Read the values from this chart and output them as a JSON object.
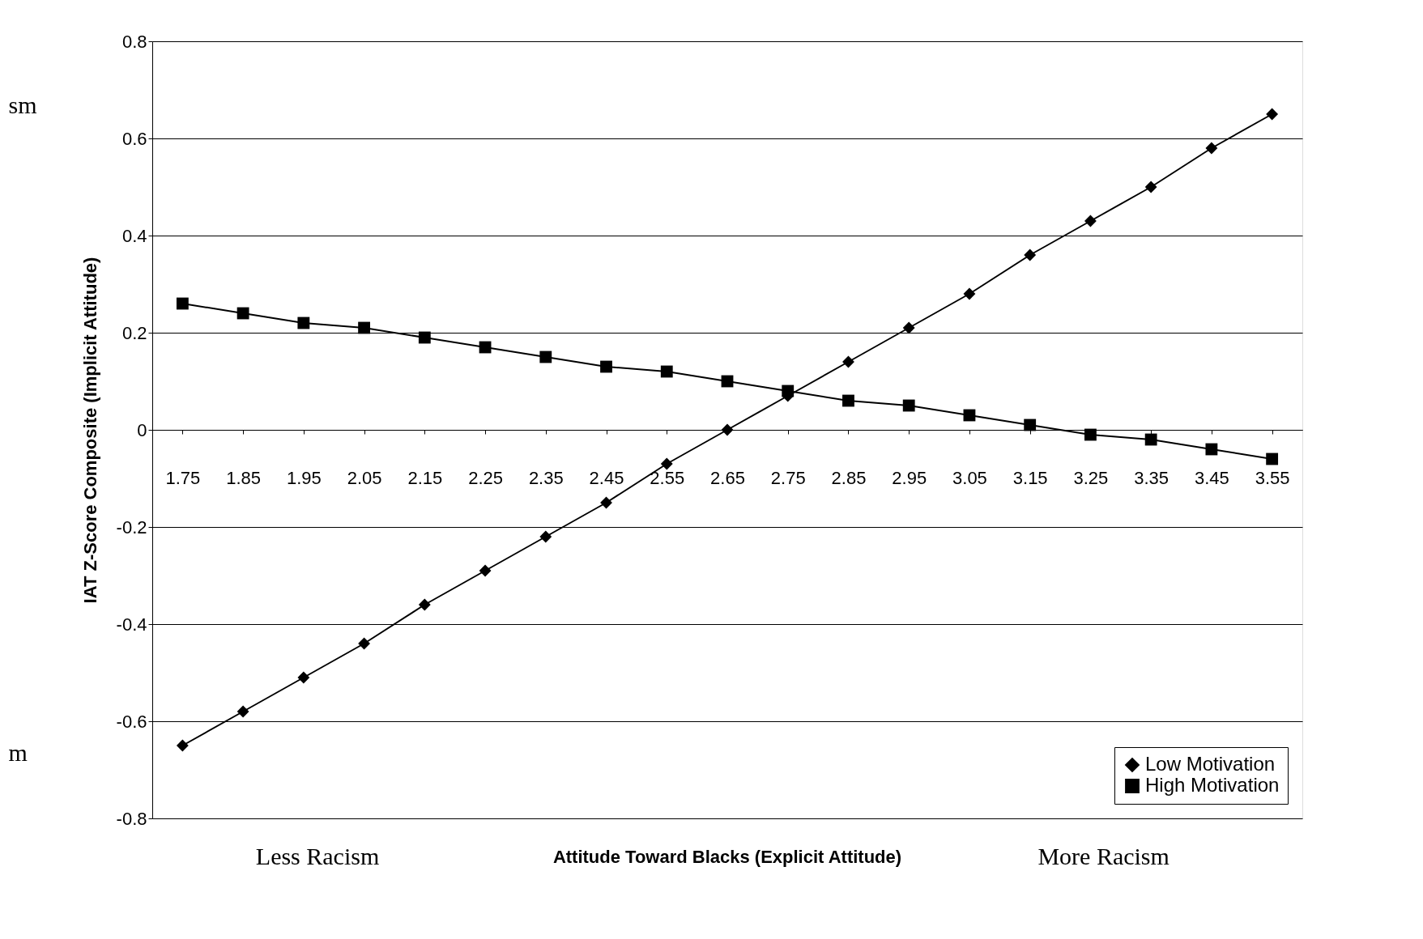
{
  "chart_data": {
    "type": "line",
    "xlabel": "Attitude Toward Blacks (Explicit Attitude)",
    "ylabel": "IAT Z-Score Composite (Implicit Attitude)",
    "categories": [
      "1.75",
      "1.85",
      "1.95",
      "2.05",
      "2.15",
      "2.25",
      "2.35",
      "2.45",
      "2.55",
      "2.65",
      "2.75",
      "2.85",
      "2.95",
      "3.05",
      "3.15",
      "3.25",
      "3.35",
      "3.45",
      "3.55"
    ],
    "series": [
      {
        "name": "Low Motivation",
        "color": "#000000",
        "marker": "diamond",
        "values": [
          -0.65,
          -0.58,
          -0.51,
          -0.44,
          -0.36,
          -0.29,
          -0.22,
          -0.15,
          -0.07,
          0.0,
          0.07,
          0.14,
          0.21,
          0.28,
          0.36,
          0.43,
          0.5,
          0.58,
          0.65
        ]
      },
      {
        "name": "High Motivation",
        "color": "#000000",
        "marker": "square",
        "values": [
          0.26,
          0.24,
          0.22,
          0.21,
          0.19,
          0.17,
          0.15,
          0.13,
          0.12,
          0.1,
          0.08,
          0.06,
          0.05,
          0.03,
          0.01,
          -0.01,
          -0.02,
          -0.04,
          -0.06
        ]
      }
    ],
    "ylim": [
      -0.8,
      0.8
    ],
    "yticks": [
      -0.8,
      -0.6,
      -0.4,
      -0.2,
      0,
      0.2,
      0.4,
      0.6,
      0.8
    ],
    "grid": "y",
    "legend": "bottom right",
    "annotations": [
      "Less Racism",
      "More Racism",
      "sm",
      "m"
    ]
  }
}
